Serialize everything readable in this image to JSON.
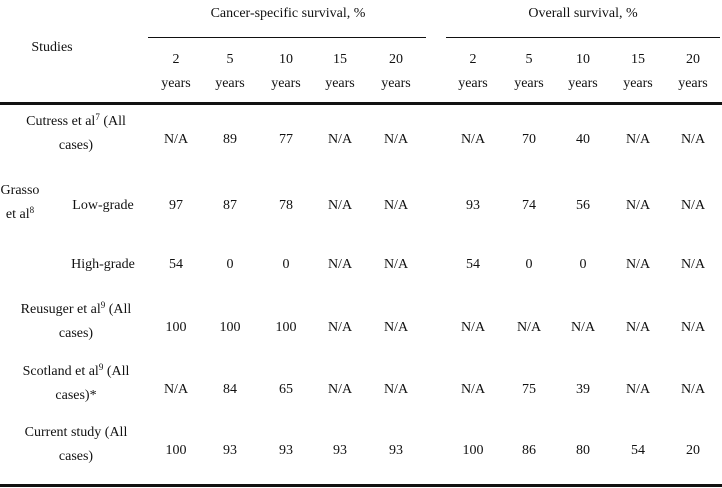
{
  "header": {
    "studies_label": "Studies",
    "cancer_group": "Cancer-specific survival, %",
    "overall_group": "Overall survival, %",
    "periods": [
      {
        "num": "2",
        "unit": "years"
      },
      {
        "num": "5",
        "unit": "years"
      },
      {
        "num": "10",
        "unit": "years"
      },
      {
        "num": "15",
        "unit": "years"
      },
      {
        "num": "20",
        "unit": "years"
      }
    ]
  },
  "rows": [
    {
      "study_line1": "Cutress et al",
      "ref": "7",
      "study_line1_suffix": " (All",
      "study_line2": "cases)",
      "cancer": [
        "N/A",
        "89",
        "77",
        "N/A",
        "N/A"
      ],
      "overall": [
        "N/A",
        "70",
        "40",
        "N/A",
        "N/A"
      ]
    },
    {
      "study_a": "Grasso",
      "study_b": "et al",
      "ref": "8",
      "subgroup": "Low-grade",
      "cancer": [
        "97",
        "87",
        "78",
        "N/A",
        "N/A"
      ],
      "overall": [
        "93",
        "74",
        "56",
        "N/A",
        "N/A"
      ]
    },
    {
      "subgroup": "High-grade",
      "cancer": [
        "54",
        "0",
        "0",
        "N/A",
        "N/A"
      ],
      "overall": [
        "54",
        "0",
        "0",
        "N/A",
        "N/A"
      ]
    },
    {
      "study_line1": "Reusuger et al",
      "ref": "9",
      "study_line1_suffix": " (All",
      "study_line2": "cases)",
      "cancer": [
        "100",
        "100",
        "100",
        "N/A",
        "N/A"
      ],
      "overall": [
        "N/A",
        "N/A",
        "N/A",
        "N/A",
        "N/A"
      ]
    },
    {
      "study_line1": "Scotland et al",
      "ref": "9",
      "study_line1_suffix": " (All",
      "study_line2": "cases)*",
      "cancer": [
        "N/A",
        "84",
        "65",
        "N/A",
        "N/A"
      ],
      "overall": [
        "N/A",
        "75",
        "39",
        "N/A",
        "N/A"
      ]
    },
    {
      "study_line1": "Current study (All",
      "ref": "",
      "study_line1_suffix": "",
      "study_line2": "cases)",
      "cancer": [
        "100",
        "93",
        "93",
        "93",
        "93"
      ],
      "overall": [
        "100",
        "86",
        "80",
        "54",
        "20"
      ]
    }
  ]
}
